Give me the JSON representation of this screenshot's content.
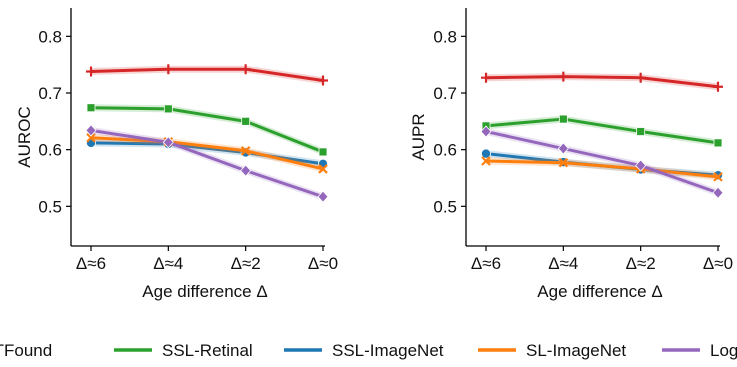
{
  "chart_data": [
    {
      "type": "line",
      "categories": [
        "Δ≈6",
        "Δ≈4",
        "Δ≈2",
        "Δ≈0"
      ],
      "xlabel": "Age difference Δ",
      "ylabel": "AUROC",
      "ylim": [
        0.43,
        0.85
      ],
      "yticks": [
        "0.5",
        "0.6",
        "0.7",
        "0.8"
      ],
      "grid": false,
      "series": [
        {
          "name": "RETFound",
          "color": "#d62728",
          "marker": "plus",
          "values": [
            0.738,
            0.742,
            0.742,
            0.722
          ]
        },
        {
          "name": "SSL-Retinal",
          "color": "#2ca02c",
          "marker": "square",
          "values": [
            0.674,
            0.672,
            0.65,
            0.596
          ]
        },
        {
          "name": "SSL-ImageNet",
          "color": "#1f77b4",
          "marker": "circle",
          "values": [
            0.612,
            0.61,
            0.595,
            0.575
          ]
        },
        {
          "name": "SL-ImageNet",
          "color": "#ff7f0e",
          "marker": "x",
          "values": [
            0.621,
            0.614,
            0.598,
            0.566
          ]
        },
        {
          "name": "Log",
          "color": "#9467bd",
          "marker": "diamond",
          "values": [
            0.634,
            0.613,
            0.563,
            0.517
          ]
        }
      ]
    },
    {
      "type": "line",
      "categories": [
        "Δ≈6",
        "Δ≈4",
        "Δ≈2",
        "Δ≈0"
      ],
      "xlabel": "Age difference Δ",
      "ylabel": "AUPR",
      "ylim": [
        0.43,
        0.85
      ],
      "yticks": [
        "0.5",
        "0.6",
        "0.7",
        "0.8"
      ],
      "grid": false,
      "series": [
        {
          "name": "RETFound",
          "color": "#d62728",
          "marker": "plus",
          "values": [
            0.727,
            0.729,
            0.727,
            0.711
          ]
        },
        {
          "name": "SSL-Retinal",
          "color": "#2ca02c",
          "marker": "square",
          "values": [
            0.642,
            0.654,
            0.632,
            0.612
          ]
        },
        {
          "name": "SSL-ImageNet",
          "color": "#1f77b4",
          "marker": "circle",
          "values": [
            0.593,
            0.578,
            0.565,
            0.555
          ]
        },
        {
          "name": "SL-ImageNet",
          "color": "#ff7f0e",
          "marker": "x",
          "values": [
            0.58,
            0.577,
            0.566,
            0.552
          ]
        },
        {
          "name": "Log",
          "color": "#9467bd",
          "marker": "diamond",
          "values": [
            0.632,
            0.602,
            0.572,
            0.524
          ]
        }
      ]
    }
  ],
  "legend": {
    "placement": "bottom",
    "entries": [
      {
        "label": "RETFound",
        "color": "#d62728"
      },
      {
        "label": "SSL-Retinal",
        "color": "#2ca02c"
      },
      {
        "label": "SSL-ImageNet",
        "color": "#1f77b4"
      },
      {
        "label": "SL-ImageNet",
        "color": "#ff7f0e"
      },
      {
        "label": "Log",
        "color": "#9467bd"
      }
    ]
  }
}
